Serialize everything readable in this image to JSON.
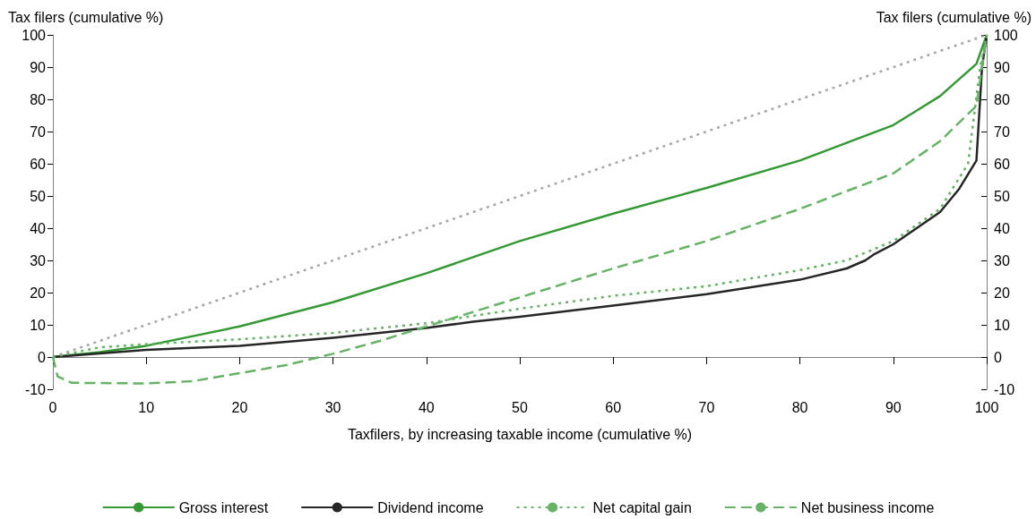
{
  "chart_data": {
    "type": "line",
    "xlabel": "Taxfilers, by increasing taxable income (cumulative %)",
    "ylabel": "Tax filers (cumulative %)",
    "y2label": "Tax filers (cumulative %)",
    "xlim": [
      0,
      100
    ],
    "xticks": [
      0,
      10,
      20,
      30,
      40,
      50,
      60,
      70,
      80,
      90,
      100
    ],
    "ylim": [
      -10,
      100
    ],
    "yticks": [
      -10,
      0,
      10,
      20,
      30,
      40,
      50,
      60,
      70,
      80,
      90,
      100
    ],
    "y2lim": [
      -10,
      100
    ],
    "y2ticks": [
      -10,
      0,
      10,
      20,
      30,
      40,
      50,
      60,
      70,
      80,
      90,
      100
    ],
    "legend": "bottom",
    "marker": "none",
    "series": [
      {
        "color": "#a6a6a6",
        "line_style": "dotted",
        "x": [
          0,
          100
        ],
        "values": [
          0,
          100
        ]
      },
      {
        "name": "Gross interest",
        "color": "#339933",
        "line_style": "solid",
        "x": [
          0,
          5,
          10,
          20,
          30,
          40,
          50,
          60,
          70,
          80,
          90,
          95,
          98.9,
          100
        ],
        "values": [
          0,
          1.5,
          3.5,
          9.5,
          17,
          26,
          36,
          44.5,
          52.5,
          61,
          72,
          81,
          91,
          100
        ]
      },
      {
        "name": "Dividend income",
        "color": "#262626",
        "line_style": "solid",
        "x": [
          0,
          10,
          20,
          30,
          40,
          45,
          50,
          60,
          70,
          80,
          85,
          87,
          88,
          90,
          95,
          97,
          98.9,
          99.5,
          100
        ],
        "values": [
          0,
          2.2,
          3.5,
          6,
          9,
          11,
          12.5,
          16,
          19.5,
          24,
          27.5,
          30,
          32,
          35,
          45,
          52,
          61,
          90,
          100
        ]
      },
      {
        "name": "Net capital gain",
        "color": "#66b366",
        "line_style": "dotted",
        "x": [
          0,
          5,
          10,
          20,
          30,
          40,
          50,
          60,
          70,
          80,
          85,
          90,
          95,
          98,
          99.3,
          100
        ],
        "values": [
          0,
          3,
          4,
          5.5,
          7.5,
          10.5,
          15,
          19,
          22,
          27,
          30,
          36,
          46,
          60,
          90,
          100
        ]
      },
      {
        "name": "Net business income",
        "color": "#66b366",
        "line_style": "dashed",
        "x": [
          0,
          0.5,
          2,
          10,
          15,
          20,
          25,
          30,
          35,
          40,
          45,
          50,
          60,
          70,
          80,
          90,
          95,
          98.9,
          99.5,
          100
        ],
        "values": [
          0,
          -6,
          -8,
          -8.2,
          -7.5,
          -5,
          -2.5,
          1,
          5,
          9.5,
          14,
          18.5,
          27.5,
          36,
          46,
          57,
          67,
          78,
          90,
          100
        ]
      }
    ]
  }
}
